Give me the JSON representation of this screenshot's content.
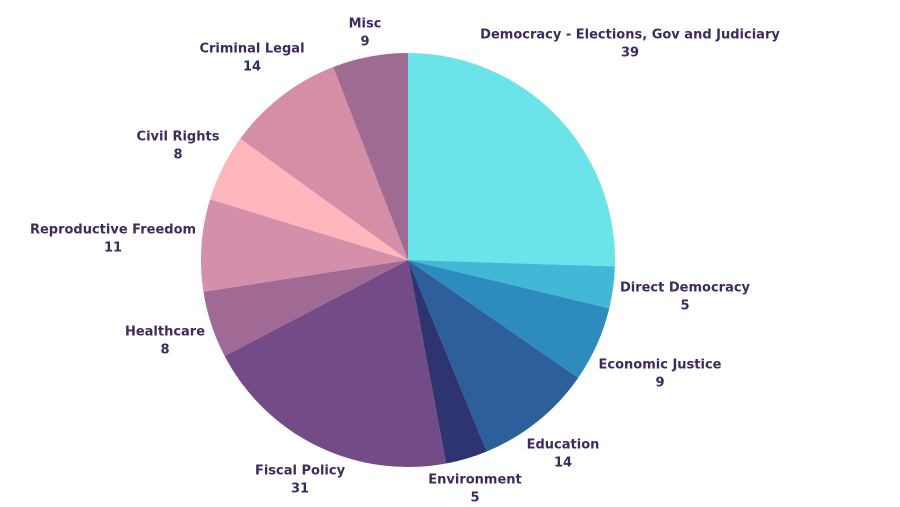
{
  "chart_data": {
    "type": "pie",
    "categories": [
      "Democracy - Elections, Gov and Judiciary",
      "Direct Democracy",
      "Economic Justice",
      "Education",
      "Environment",
      "Fiscal Policy",
      "Healthcare",
      "Reproductive Freedom",
      "Civil Rights",
      "Criminal Legal",
      "Misc"
    ],
    "values": [
      39,
      5,
      9,
      14,
      5,
      31,
      8,
      11,
      8,
      14,
      9
    ],
    "colors": [
      "#6ae4e8",
      "#42b8d6",
      "#2e8bbd",
      "#2d5f9a",
      "#2e3470",
      "#734b86",
      "#a06a95",
      "#d48fab",
      "#ffb6bd",
      "#d48fa6",
      "#9f6b92"
    ]
  }
}
